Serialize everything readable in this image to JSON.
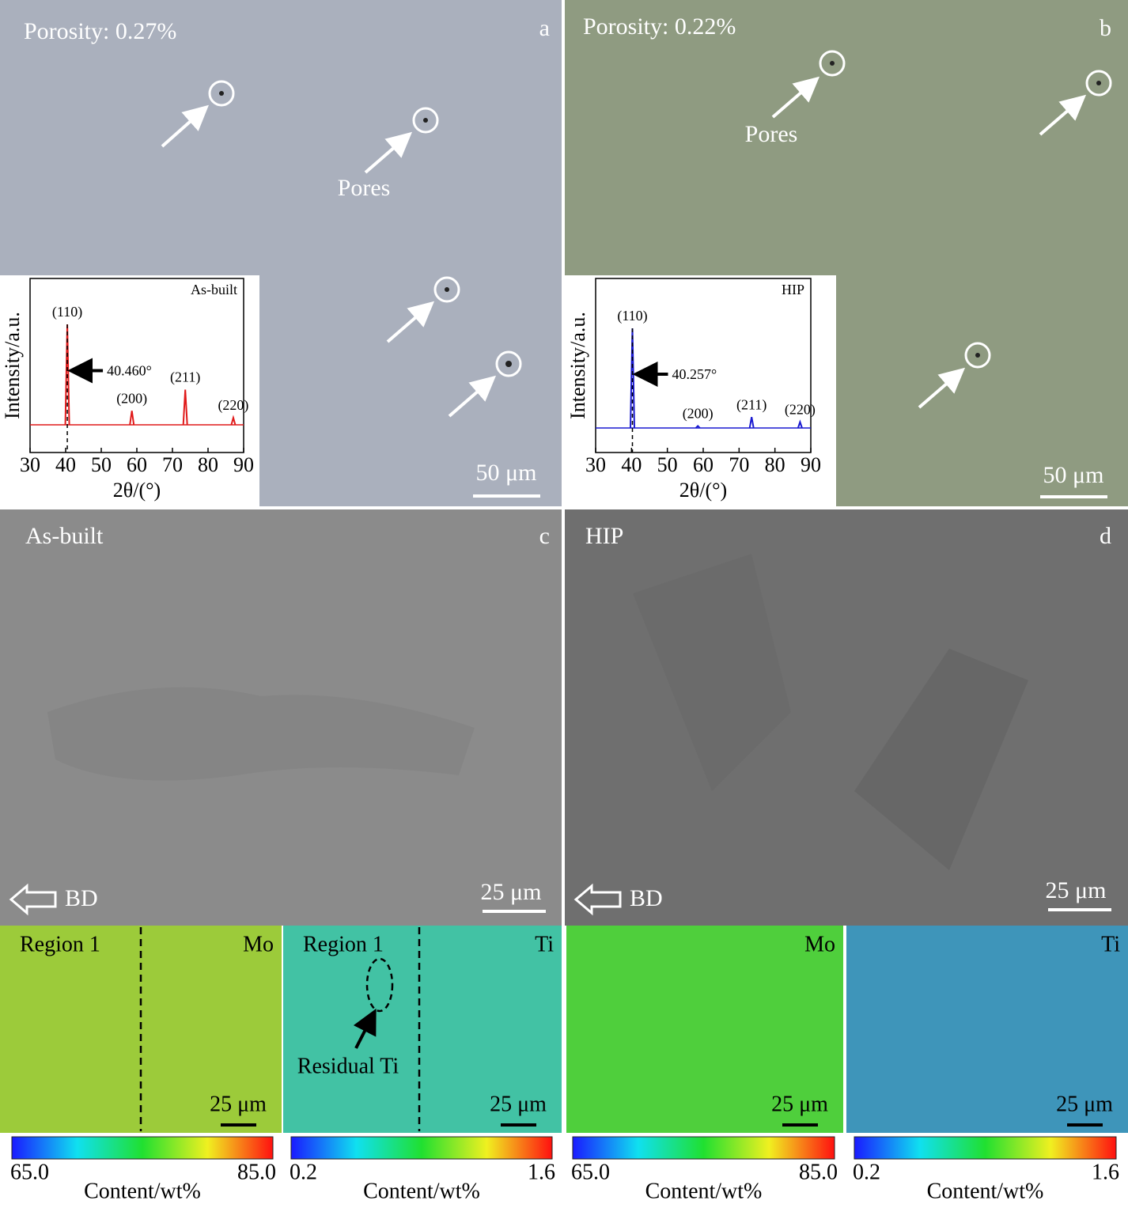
{
  "panels": [
    {
      "letter": "a",
      "label": "Porosity: 0.27%",
      "pores_label": "Pores",
      "scale_bar": "50 μm"
    },
    {
      "letter": "b",
      "label": "Porosity: 0.22%",
      "pores_label": "Pores",
      "scale_bar": "50 μm"
    },
    {
      "letter": "c",
      "label": "As-built",
      "direction": "BD",
      "scale_bar": "25 μm"
    },
    {
      "letter": "d",
      "label": "HIP",
      "direction": "BD",
      "scale_bar": "25 μm"
    }
  ],
  "xrd": [
    {
      "title": "As-built",
      "ylabel": "Intensity/a.u.",
      "xlabel": "2θ/(°)",
      "color": "#e01a1a",
      "xlim": [
        30,
        90
      ],
      "xticks": [
        30,
        40,
        50,
        60,
        70,
        80,
        90
      ],
      "annotation": "40.460°",
      "peaks": [
        {
          "label": "(110)",
          "x": 40.46,
          "height": 100
        },
        {
          "label": "(200)",
          "x": 58.6,
          "height": 14
        },
        {
          "label": "(211)",
          "x": 73.6,
          "height": 35
        },
        {
          "label": "(220)",
          "x": 87.1,
          "height": 7
        }
      ]
    },
    {
      "title": "HIP",
      "ylabel": "Intensity/a.u.",
      "xlabel": "2θ/(°)",
      "color": "#1a1ad0",
      "xlim": [
        30,
        90
      ],
      "xticks": [
        30,
        40,
        50,
        60,
        70,
        80,
        90
      ],
      "annotation": "40.257°",
      "peaks": [
        {
          "label": "(110)",
          "x": 40.257,
          "height": 100
        },
        {
          "label": "(200)",
          "x": 58.5,
          "height": 2
        },
        {
          "label": "(211)",
          "x": 73.5,
          "height": 11
        },
        {
          "label": "(220)",
          "x": 87.0,
          "height": 6
        }
      ]
    }
  ],
  "maps": [
    {
      "element": "Mo",
      "region": "Region 1",
      "scale_bar": "25 μm",
      "colorbar": {
        "min": "65.0",
        "max": "85.0",
        "label": "Content/wt%"
      }
    },
    {
      "element": "Ti",
      "region": "Region 1",
      "note": "Residual Ti",
      "scale_bar": "25 μm",
      "colorbar": {
        "min": "0.2",
        "max": "1.6",
        "label": "Content/wt%"
      }
    },
    {
      "element": "Mo",
      "scale_bar": "25 μm",
      "colorbar": {
        "min": "65.0",
        "max": "85.0",
        "label": "Content/wt%"
      }
    },
    {
      "element": "Ti",
      "scale_bar": "25 μm",
      "colorbar": {
        "min": "0.2",
        "max": "1.6",
        "label": "Content/wt%"
      }
    }
  ]
}
